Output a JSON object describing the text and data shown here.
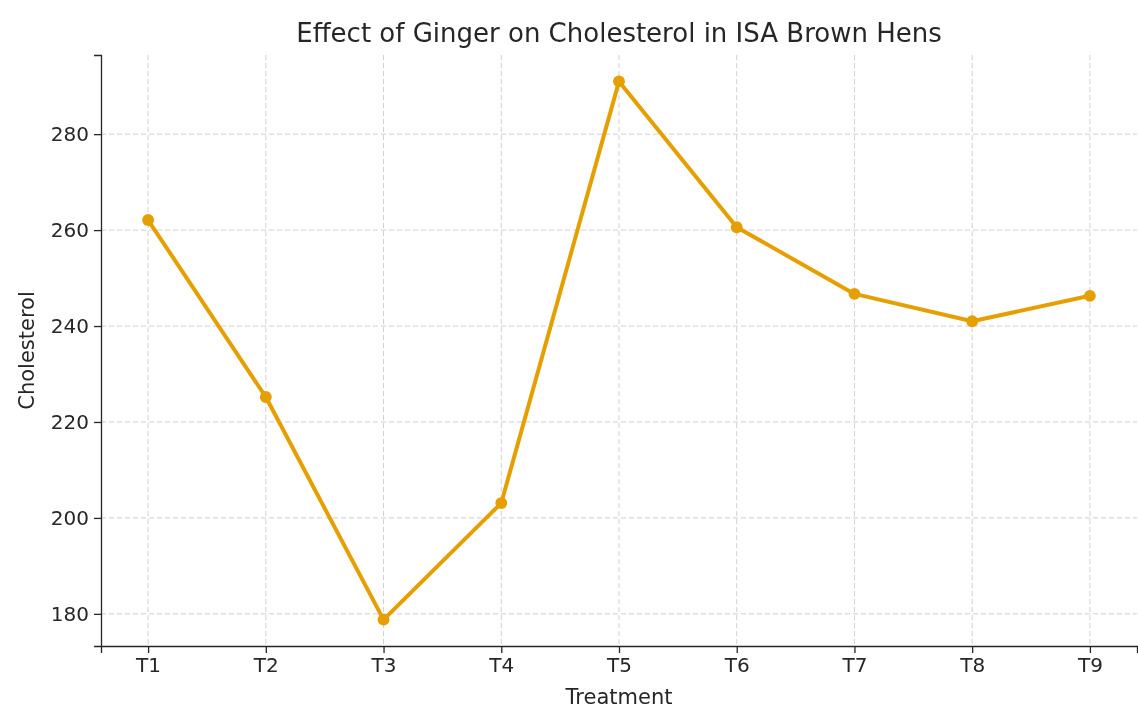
{
  "chart_data": {
    "type": "line",
    "title": "Effect of Ginger on Cholesterol in ISA Brown Hens",
    "xlabel": "Treatment",
    "ylabel": "Cholesterol",
    "categories": [
      "T1",
      "T2",
      "T3",
      "T4",
      "T5",
      "T6",
      "T7",
      "T8",
      "T9"
    ],
    "series": [
      {
        "color": "#e69f00",
        "values": [
          262.1,
          225.2,
          178.8,
          203.1,
          291,
          260.6,
          246.7,
          241,
          246.3
        ]
      }
    ],
    "ylim": [
      173.3,
      296.5
    ],
    "yticks": [
      180,
      200,
      220,
      240,
      260,
      280
    ],
    "grid": true,
    "marker": "circle",
    "line_style": "solid"
  }
}
